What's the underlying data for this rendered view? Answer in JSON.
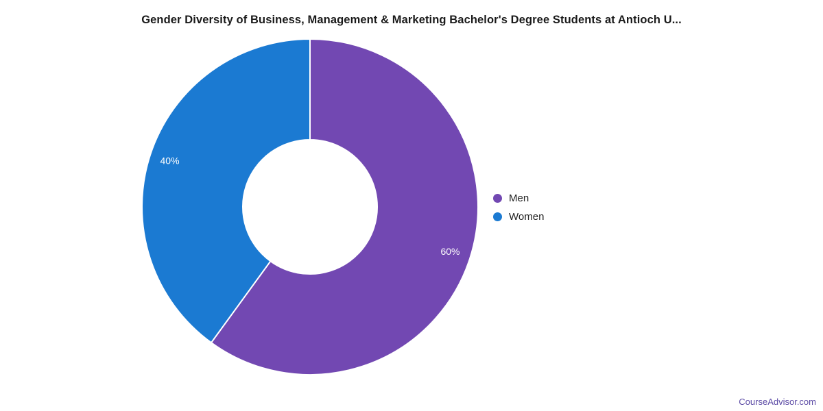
{
  "chart_data": {
    "type": "pie",
    "subtype": "donut",
    "title": "Gender Diversity of Business, Management & Marketing Bachelor's Degree Students at Antioch U...",
    "categories": [
      "Men",
      "Women"
    ],
    "values": [
      60,
      40
    ],
    "labels": [
      "60%",
      "40%"
    ],
    "colors": [
      "#7248b2",
      "#1b7ad2"
    ],
    "unit": "%",
    "start_angle_deg": 0,
    "direction": "clockwise",
    "inner_radius_ratio": 0.4,
    "legend_position": "right",
    "slice_label_color": "#ffffff",
    "slice_border_color": "#ffffff",
    "background": "#ffffff"
  },
  "footer": {
    "brand": "CourseAdvisor.com",
    "brand_color": "#5b4aa5"
  }
}
